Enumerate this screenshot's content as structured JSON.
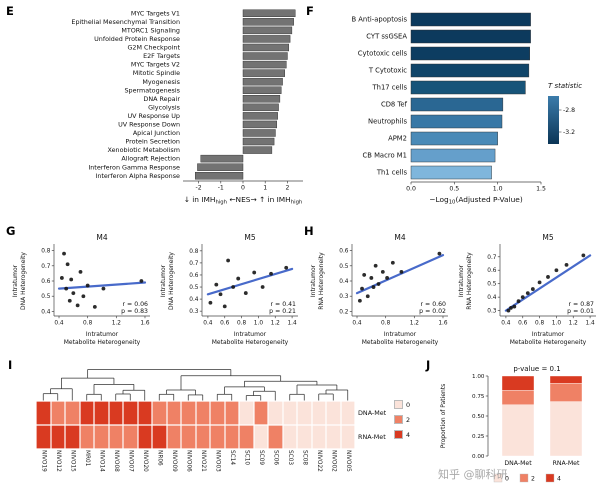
{
  "watermark": "知乎 @聊科研",
  "colors": {
    "bar_gray": "#737373",
    "line_blue": "#3f63c8",
    "point": "#151515",
    "heat0": "#fbe3da",
    "heat2": "#ef8165",
    "heat4": "#d93a21"
  },
  "panels": {
    "E": {
      "label": "E"
    },
    "F": {
      "label": "F"
    },
    "G": {
      "label": "G"
    },
    "H": {
      "label": "H"
    },
    "I": {
      "label": "I"
    },
    "J": {
      "label": "J"
    }
  },
  "chart_data": [
    {
      "id": "E",
      "type": "bar",
      "orientation": "horizontal",
      "categories": [
        "MYC Targets V1",
        "Epithelial Mesenchymal Transition",
        "MTORC1 Signaling",
        "Unfolded Protein Response",
        "G2M Checkpoint",
        "E2F Targets",
        "MYC Targets V2",
        "Mitotic Spindle",
        "Myogenesis",
        "Spermatogenesis",
        "DNA Repair",
        "Glycolysis",
        "UV Response Up",
        "UV Response Down",
        "Apical Junction",
        "Protein Secretion",
        "Xenobiotic Metabolism",
        "Allograft Rejection",
        "Interferon Gamma Response",
        "Interferon Alpha Response"
      ],
      "values": [
        2.35,
        2.28,
        2.2,
        2.12,
        2.06,
        2.0,
        1.95,
        1.88,
        1.78,
        1.72,
        1.66,
        1.6,
        1.56,
        1.52,
        1.46,
        1.4,
        1.3,
        -1.9,
        -2.05,
        -2.15
      ],
      "xlim": [
        -2.7,
        2.7
      ],
      "xticks": [
        -2,
        -1,
        0,
        1,
        2
      ],
      "xtick_labels": [
        "-2",
        "-1",
        "0",
        "1",
        "2"
      ],
      "xlabel_parts": [
        {
          "t": "↓ in IMH"
        },
        {
          "t": "high",
          "sub": true
        },
        {
          "t": " ←NES→ ↑ in IMH"
        },
        {
          "t": "high",
          "sub": true
        }
      ]
    },
    {
      "id": "F",
      "type": "bar",
      "orientation": "horizontal",
      "categories": [
        "B Anti-apoptosis",
        "CYT ssGSEA",
        "Cytotoxic cells",
        "T Cytotoxic",
        "Th17 cells",
        "CD8 Tef",
        "Neutrophils",
        "APM2",
        "CB Macro M1",
        "Th1 cells"
      ],
      "values": [
        1.38,
        1.38,
        1.37,
        1.36,
        1.32,
        1.06,
        1.05,
        1.0,
        0.97,
        0.93
      ],
      "bar_colors": [
        "#0c3a5d",
        "#0c3a5d",
        "#0d3d61",
        "#104569",
        "#175479",
        "#2a6793",
        "#3878a6",
        "#4a8ab7",
        "#659fcb",
        "#7fb6dc"
      ],
      "xlim": [
        0,
        1.5
      ],
      "xticks": [
        0,
        0.5,
        1,
        1.5
      ],
      "xtick_labels": [
        "0.0",
        "0.5",
        "1.0",
        "1.5"
      ],
      "xlabel_parts": [
        {
          "t": "−Log"
        },
        {
          "t": "10",
          "sub": true
        },
        {
          "t": "(Adjusted P-Value)"
        }
      ],
      "legend": {
        "title": "T statistic",
        "ticks": [
          "-2.8",
          "-3.2"
        ],
        "gradient_top": "#3c7cab",
        "gradient_bottom": "#0b3556"
      }
    },
    {
      "id": "G1",
      "type": "scatter",
      "title": "M4",
      "xlabel_lines": [
        "Intratumor",
        "Metabolite Heterogeneity"
      ],
      "ylabel_lines": [
        "Intratumor",
        "DNA Heterogeneity"
      ],
      "xlim": [
        0.33,
        1.67
      ],
      "ylim": [
        0.37,
        0.83
      ],
      "xticks": [
        0.4,
        0.8,
        1.2,
        1.6
      ],
      "xtick_labels": [
        "0.4",
        "0.8",
        "1.2",
        "1.6"
      ],
      "yticks": [
        0.4,
        0.5,
        0.6,
        0.7,
        0.8
      ],
      "ytick_labels": [
        "0.4",
        "0.5",
        "0.6",
        "0.7",
        "0.8"
      ],
      "points": [
        [
          0.44,
          0.62
        ],
        [
          0.47,
          0.78
        ],
        [
          0.5,
          0.55
        ],
        [
          0.52,
          0.71
        ],
        [
          0.55,
          0.47
        ],
        [
          0.57,
          0.61
        ],
        [
          0.6,
          0.52
        ],
        [
          0.66,
          0.44
        ],
        [
          0.7,
          0.66
        ],
        [
          0.74,
          0.5
        ],
        [
          0.8,
          0.57
        ],
        [
          0.9,
          0.43
        ],
        [
          1.02,
          0.55
        ],
        [
          1.55,
          0.6
        ]
      ],
      "line": [
        [
          0.4,
          0.55
        ],
        [
          1.6,
          0.59
        ]
      ],
      "r": "r = 0.06",
      "p": "p = 0.83"
    },
    {
      "id": "G2",
      "type": "scatter",
      "title": "M5",
      "xlabel_lines": [
        "Intratumor",
        "Metabolite Heterogeneity"
      ],
      "ylabel_lines": [
        "Intratumor",
        "DNA Heterogeneity"
      ],
      "xlim": [
        0.33,
        1.47
      ],
      "ylim": [
        0.26,
        0.84
      ],
      "xticks": [
        0.4,
        0.6,
        0.8,
        1.0,
        1.2,
        1.4
      ],
      "xtick_labels": [
        "0.4",
        "0.6",
        "0.8",
        "1.0",
        "1.2",
        "1.4"
      ],
      "yticks": [
        0.3,
        0.4,
        0.5,
        0.6,
        0.7,
        0.8
      ],
      "ytick_labels": [
        "0.3",
        "0.4",
        "0.5",
        "0.6",
        "0.7",
        "0.8"
      ],
      "points": [
        [
          0.43,
          0.37
        ],
        [
          0.5,
          0.52
        ],
        [
          0.55,
          0.44
        ],
        [
          0.6,
          0.34
        ],
        [
          0.64,
          0.72
        ],
        [
          0.7,
          0.5
        ],
        [
          0.76,
          0.57
        ],
        [
          0.85,
          0.45
        ],
        [
          0.95,
          0.62
        ],
        [
          1.05,
          0.5
        ],
        [
          1.15,
          0.61
        ],
        [
          1.33,
          0.66
        ]
      ],
      "line": [
        [
          0.4,
          0.44
        ],
        [
          1.4,
          0.65
        ]
      ],
      "r": "r = 0.41",
      "p": "p = 0.21"
    },
    {
      "id": "H1",
      "type": "scatter",
      "title": "M4",
      "xlabel_lines": [
        "Intratumor",
        "Metabolite Heterogeneity"
      ],
      "ylabel_lines": [
        "Intratumor",
        "RNA Heterogeneity"
      ],
      "xlim": [
        0.33,
        1.67
      ],
      "ylim": [
        0.17,
        0.63
      ],
      "xticks": [
        0.4,
        0.8,
        1.2,
        1.6
      ],
      "xtick_labels": [
        "0.4",
        "0.8",
        "1.2",
        "1.6"
      ],
      "yticks": [
        0.2,
        0.3,
        0.4,
        0.5,
        0.6
      ],
      "ytick_labels": [
        "0.2",
        "0.3",
        "0.4",
        "0.5",
        "0.6"
      ],
      "points": [
        [
          0.44,
          0.27
        ],
        [
          0.47,
          0.35
        ],
        [
          0.5,
          0.44
        ],
        [
          0.55,
          0.3
        ],
        [
          0.6,
          0.42
        ],
        [
          0.63,
          0.36
        ],
        [
          0.66,
          0.5
        ],
        [
          0.7,
          0.38
        ],
        [
          0.76,
          0.46
        ],
        [
          0.82,
          0.42
        ],
        [
          0.9,
          0.52
        ],
        [
          1.02,
          0.46
        ],
        [
          1.55,
          0.58
        ]
      ],
      "line": [
        [
          0.4,
          0.32
        ],
        [
          1.6,
          0.57
        ]
      ],
      "r": "r = 0.60",
      "p": "p = 0.02"
    },
    {
      "id": "H2",
      "type": "scatter",
      "title": "M5",
      "xlabel_lines": [
        "Intratumor",
        "Metabolite Heterogeneity"
      ],
      "ylabel_lines": [
        "Intratumor",
        "RNA Heterogeneity"
      ],
      "xlim": [
        0.33,
        1.47
      ],
      "ylim": [
        0.26,
        0.78
      ],
      "xticks": [
        0.4,
        0.6,
        0.8,
        1.0,
        1.2,
        1.4
      ],
      "xtick_labels": [
        "0.4",
        "0.6",
        "0.8",
        "1.0",
        "1.2",
        "1.4"
      ],
      "yticks": [
        0.3,
        0.4,
        0.5,
        0.6,
        0.7
      ],
      "ytick_labels": [
        "0.3",
        "0.4",
        "0.5",
        "0.6",
        "0.7"
      ],
      "points": [
        [
          0.43,
          0.3
        ],
        [
          0.46,
          0.32
        ],
        [
          0.5,
          0.33
        ],
        [
          0.55,
          0.37
        ],
        [
          0.6,
          0.4
        ],
        [
          0.66,
          0.43
        ],
        [
          0.72,
          0.46
        ],
        [
          0.8,
          0.51
        ],
        [
          0.9,
          0.55
        ],
        [
          1.0,
          0.6
        ],
        [
          1.12,
          0.64
        ],
        [
          1.32,
          0.71
        ]
      ],
      "line": [
        [
          0.4,
          0.3
        ],
        [
          1.4,
          0.71
        ]
      ],
      "r": "r = 0.87",
      "p": "p = 0.01"
    },
    {
      "id": "I",
      "type": "heatmap",
      "columns": [
        "NIVO19",
        "NIVO12",
        "NIVO15",
        "MR01",
        "NIVO14",
        "NIVO08",
        "NIVO07",
        "NIVO20",
        "NR06",
        "NIVO09",
        "NIVO06",
        "NIVO21",
        "NIVO03",
        "SC14",
        "SC10",
        "SC09",
        "SC06",
        "SC03",
        "SC08",
        "NIVO22",
        "NIVO02",
        "NIVO05"
      ],
      "rows": [
        "DNA-Met",
        "RNA-Met"
      ],
      "matrix": [
        [
          4,
          2,
          2,
          4,
          4,
          4,
          4,
          4,
          2,
          2,
          2,
          2,
          2,
          2,
          0,
          2,
          0,
          0,
          0,
          0,
          0,
          0
        ],
        [
          4,
          4,
          4,
          2,
          2,
          2,
          2,
          4,
          4,
          2,
          2,
          2,
          2,
          2,
          2,
          0,
          2,
          0,
          0,
          0,
          0,
          0
        ]
      ],
      "legend_values": [
        "0",
        "2",
        "4"
      ],
      "dendrogram": [
        [
          [
            [
              0,
              1,
              0.22
            ],
            2,
            0.38
          ],
          [
            [
              3,
              4,
              0.2
            ],
            [
              [
                5,
                6,
                0.21
              ],
              7,
              0.33
            ],
            0.52
          ],
          0.72
        ],
        [
          [
            [
              8,
              9,
              0.2
            ],
            [
              10,
              11,
              0.18
            ],
            0.34
          ],
          [
            [
              [
                12,
                13,
                0.2
              ],
              [
                [
                  14,
                  15,
                  0.16
                ],
                16,
                0.3
              ],
              0.44
            ],
            [
              [
                17,
                18,
                0.2
              ],
              [
                [
                  19,
                  20,
                  0.21
                ],
                21,
                0.34
              ],
              0.5
            ],
            0.62
          ],
          0.8
        ],
        1.0
      ]
    },
    {
      "id": "J",
      "type": "stacked_bar",
      "title": "p-value = 0.1",
      "ylabel": "Proportion of Patients",
      "yticks": [
        "0.00",
        "0.25",
        "0.50",
        "0.75",
        "1.00"
      ],
      "categories": [
        "DNA-Met",
        "RNA-Met"
      ],
      "series": [
        {
          "name": "0",
          "values": [
            0.64,
            0.68
          ]
        },
        {
          "name": "2",
          "values": [
            0.18,
            0.23
          ]
        },
        {
          "name": "4",
          "values": [
            0.18,
            0.09
          ]
        }
      ],
      "legend_values": [
        "0",
        "2",
        "4"
      ]
    }
  ]
}
